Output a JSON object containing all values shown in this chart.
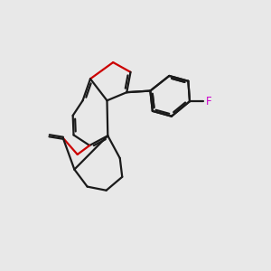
{
  "bg_color": "#e8e8e8",
  "bond_color": "#1a1a1a",
  "oxygen_color": "#cc0000",
  "fluorine_color": "#cc00cc",
  "bond_width": 1.6,
  "label_fontsize": 8.5
}
